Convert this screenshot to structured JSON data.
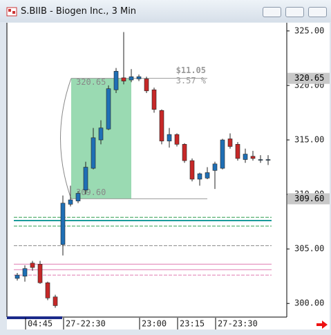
{
  "chart_data": {
    "type": "candlestick",
    "title": "S.BIIB - Biogen Inc., 3 Min",
    "categories": [
      null,
      "04:45",
      null,
      null,
      null,
      null,
      "27-22:30",
      null,
      null,
      null,
      null,
      null,
      null,
      null,
      null,
      null,
      "23:00",
      null,
      null,
      null,
      null,
      "23:15",
      null,
      null,
      null,
      null,
      "27-23:30",
      null,
      null,
      null,
      null,
      null,
      null,
      null
    ],
    "open": [
      302.3,
      302.5,
      303.7,
      303.6,
      301.9,
      300.6,
      305.4,
      309.1,
      309.4,
      310.4,
      312.4,
      315.0,
      316.0,
      319.6,
      320.7,
      320.5,
      320.6,
      320.6,
      319.6,
      317.7,
      314.9,
      315.5,
      314.6,
      313.1,
      311.4,
      311.5,
      312.2,
      312.4,
      315.1,
      314.6,
      313.2,
      313.5,
      313.2,
      313.2
    ],
    "high": [
      302.8,
      303.5,
      303.9,
      303.9,
      302.0,
      300.8,
      309.9,
      310.8,
      310.3,
      313.0,
      316.1,
      316.8,
      320.0,
      321.6,
      324.9,
      321.5,
      321.0,
      320.8,
      319.8,
      317.8,
      316.1,
      315.6,
      314.7,
      313.3,
      312.0,
      312.5,
      313.0,
      315.1,
      315.6,
      314.8,
      314.2,
      314.0,
      313.6,
      313.6
    ],
    "low": [
      302.1,
      302.0,
      303.0,
      301.8,
      300.3,
      299.6,
      304.4,
      308.9,
      309.2,
      310.0,
      312.3,
      314.6,
      315.9,
      319.3,
      320.1,
      320.3,
      320.4,
      319.3,
      317.5,
      314.6,
      314.3,
      314.4,
      312.9,
      311.2,
      310.8,
      311.4,
      310.5,
      312.3,
      314.2,
      313.1,
      312.9,
      313.1,
      312.9,
      312.7
    ],
    "close": [
      302.6,
      303.2,
      303.3,
      301.9,
      300.5,
      299.8,
      309.2,
      309.5,
      310.1,
      312.5,
      315.2,
      316.1,
      319.7,
      321.3,
      320.4,
      320.8,
      320.8,
      319.5,
      317.8,
      314.9,
      315.5,
      314.6,
      313.1,
      311.4,
      311.9,
      312.0,
      312.8,
      315.0,
      314.4,
      313.3,
      313.7,
      313.3,
      313.2,
      313.2
    ],
    "up_color": "#1f6fb5",
    "down_color": "#c62828",
    "ylim": [
      298.75,
      325.75
    ],
    "yticks": [
      {
        "value": 300,
        "label": "300.00"
      },
      {
        "value": 305,
        "label": "305.00"
      },
      {
        "value": 310,
        "label": "310.00"
      },
      {
        "value": 315,
        "label": "315.00"
      },
      {
        "value": 320,
        "label": "320.00"
      },
      {
        "value": 325,
        "label": "325.00"
      }
    ],
    "levels": [
      {
        "value": 307.9,
        "color": "#2e9e4f",
        "style": "dashed"
      },
      {
        "value": 307.6,
        "color": "#1a9a9a",
        "style": "solid"
      },
      {
        "value": 307.1,
        "color": "#2e9e4f",
        "style": "dashed"
      },
      {
        "value": 305.3,
        "color": "#888888",
        "style": "dashed"
      },
      {
        "value": 303.6,
        "color": "#e07ab0",
        "style": "solid"
      },
      {
        "value": 303.1,
        "color": "#e07ab0",
        "style": "solid"
      },
      {
        "value": 302.6,
        "color": "#e07ab0",
        "style": "dashed"
      }
    ],
    "measure": {
      "high": {
        "value": 320.65,
        "label": "320.65"
      },
      "low": {
        "value": 309.6,
        "label": "309.60"
      },
      "change_label": "$11.05",
      "percent_label": "3.57 %",
      "color": "#8fd6aa"
    }
  }
}
